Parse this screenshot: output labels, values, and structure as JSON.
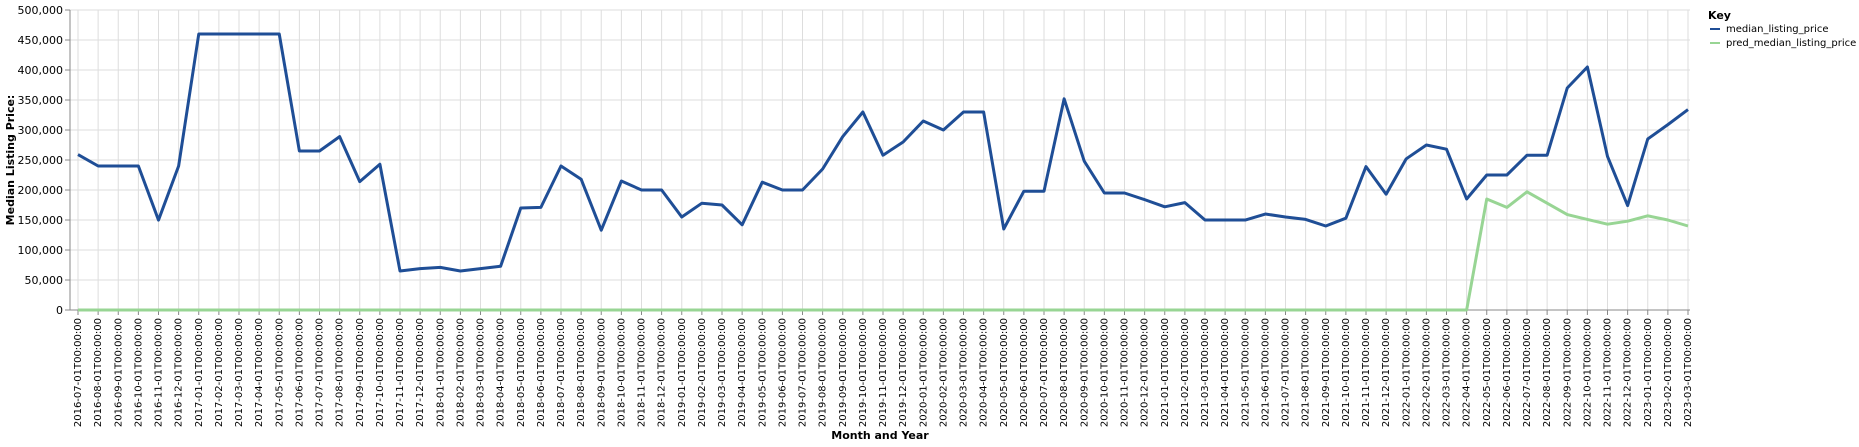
{
  "chart_data": {
    "type": "line",
    "xlabel": "Month and Year",
    "ylabel": "Median Listing Price:",
    "ylim": [
      0,
      500000
    ],
    "yticks": [
      0,
      50000,
      100000,
      150000,
      200000,
      250000,
      300000,
      350000,
      400000,
      450000,
      500000
    ],
    "ytick_labels": [
      "0",
      "50,000",
      "100,000",
      "150,000",
      "200,000",
      "250,000",
      "300,000",
      "350,000",
      "400,000",
      "450,000",
      "500,000"
    ],
    "grid": true,
    "legend": {
      "title": "Key",
      "position": "top-right"
    },
    "x": [
      "2016-07-01T00:00:00",
      "2016-08-01T00:00:00",
      "2016-09-01T00:00:00",
      "2016-10-01T00:00:00",
      "2016-11-01T00:00:00",
      "2016-12-01T00:00:00",
      "2017-01-01T00:00:00",
      "2017-02-01T00:00:00",
      "2017-03-01T00:00:00",
      "2017-04-01T00:00:00",
      "2017-05-01T00:00:00",
      "2017-06-01T00:00:00",
      "2017-07-01T00:00:00",
      "2017-08-01T00:00:00",
      "2017-09-01T00:00:00",
      "2017-10-01T00:00:00",
      "2017-11-01T00:00:00",
      "2017-12-01T00:00:00",
      "2018-01-01T00:00:00",
      "2018-02-01T00:00:00",
      "2018-03-01T00:00:00",
      "2018-04-01T00:00:00",
      "2018-05-01T00:00:00",
      "2018-06-01T00:00:00",
      "2018-07-01T00:00:00",
      "2018-08-01T00:00:00",
      "2018-09-01T00:00:00",
      "2018-10-01T00:00:00",
      "2018-11-01T00:00:00",
      "2018-12-01T00:00:00",
      "2019-01-01T00:00:00",
      "2019-02-01T00:00:00",
      "2019-03-01T00:00:00",
      "2019-04-01T00:00:00",
      "2019-05-01T00:00:00",
      "2019-06-01T00:00:00",
      "2019-07-01T00:00:00",
      "2019-08-01T00:00:00",
      "2019-09-01T00:00:00",
      "2019-10-01T00:00:00",
      "2019-11-01T00:00:00",
      "2019-12-01T00:00:00",
      "2020-01-01T00:00:00",
      "2020-02-01T00:00:00",
      "2020-03-01T00:00:00",
      "2020-04-01T00:00:00",
      "2020-05-01T00:00:00",
      "2020-06-01T00:00:00",
      "2020-07-01T00:00:00",
      "2020-08-01T00:00:00",
      "2020-09-01T00:00:00",
      "2020-10-01T00:00:00",
      "2020-11-01T00:00:00",
      "2020-12-01T00:00:00",
      "2021-01-01T00:00:00",
      "2021-02-01T00:00:00",
      "2021-03-01T00:00:00",
      "2021-04-01T00:00:00",
      "2021-05-01T00:00:00",
      "2021-06-01T00:00:00",
      "2021-07-01T00:00:00",
      "2021-08-01T00:00:00",
      "2021-09-01T00:00:00",
      "2021-10-01T00:00:00",
      "2021-11-01T00:00:00",
      "2021-12-01T00:00:00",
      "2022-01-01T00:00:00",
      "2022-02-01T00:00:00",
      "2022-03-01T00:00:00",
      "2022-04-01T00:00:00",
      "2022-05-01T00:00:00",
      "2022-06-01T00:00:00",
      "2022-07-01T00:00:00",
      "2022-08-01T00:00:00",
      "2022-09-01T00:00:00",
      "2022-10-01T00:00:00",
      "2022-11-01T00:00:00",
      "2022-12-01T00:00:00",
      "2023-01-01T00:00:00",
      "2023-02-01T00:00:00",
      "2023-03-01T00:00:00"
    ],
    "series": [
      {
        "name": "median_listing_price",
        "color": "#1f4e96",
        "values": [
          259000,
          240000,
          240000,
          240000,
          149900,
          240000,
          459900,
          459900,
          459900,
          459900,
          459900,
          265000,
          265000,
          289000,
          214000,
          243000,
          65000,
          69000,
          71000,
          65000,
          69000,
          73000,
          170000,
          171000,
          240000,
          218000,
          133000,
          215000,
          200000,
          200000,
          155000,
          178000,
          175000,
          142000,
          213000,
          200000,
          200000,
          235000,
          289000,
          330000,
          258000,
          280000,
          315000,
          300000,
          330000,
          330000,
          135000,
          198000,
          198000,
          352000,
          248000,
          195000,
          195000,
          184000,
          172000,
          179000,
          150000,
          150000,
          150000,
          160000,
          155000,
          151000,
          140000,
          153000,
          239000,
          193000,
          252000,
          275000,
          268000,
          185000,
          225000,
          225000,
          258000,
          258000,
          370000,
          405000,
          256000,
          174000,
          285000,
          309000,
          334000
        ]
      },
      {
        "name": "pred_median_listing_price",
        "color": "#98d594",
        "values": [
          0,
          0,
          0,
          0,
          0,
          0,
          0,
          0,
          0,
          0,
          0,
          0,
          0,
          0,
          0,
          0,
          0,
          0,
          0,
          0,
          0,
          0,
          0,
          0,
          0,
          0,
          0,
          0,
          0,
          0,
          0,
          0,
          0,
          0,
          0,
          0,
          0,
          0,
          0,
          0,
          0,
          0,
          0,
          0,
          0,
          0,
          0,
          0,
          0,
          0,
          0,
          0,
          0,
          0,
          0,
          0,
          0,
          0,
          0,
          0,
          0,
          0,
          0,
          0,
          0,
          0,
          0,
          0,
          0,
          0,
          185000,
          171000,
          197000,
          178000,
          159000,
          151000,
          143000,
          148000,
          157000,
          150000,
          140000
        ]
      }
    ]
  }
}
